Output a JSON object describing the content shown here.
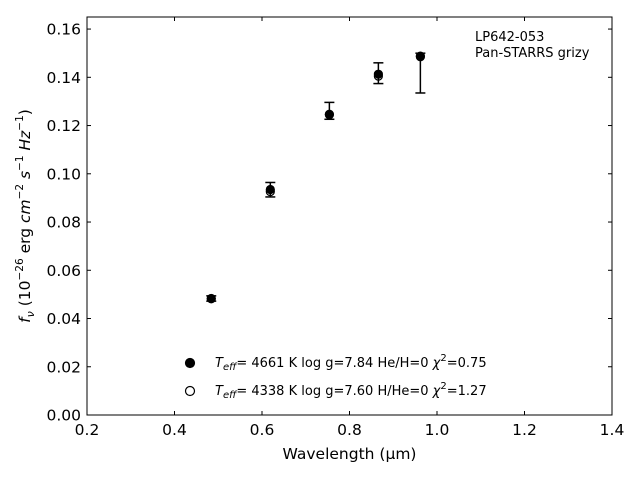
{
  "chart_data": {
    "type": "scatter",
    "xlabel": "Wavelength (μm)",
    "ylabel": "f_ν (10^-26 erg cm^-2 s^-1 Hz^-1)",
    "xlim": [
      0.2,
      1.4
    ],
    "ylim": [
      0.0,
      0.165
    ],
    "x_ticks": [
      0.2,
      0.4,
      0.6,
      0.8,
      1.0,
      1.2,
      1.4
    ],
    "y_ticks": [
      0.0,
      0.02,
      0.04,
      0.06,
      0.08,
      0.1,
      0.12,
      0.14,
      0.16
    ],
    "x_tick_labels": [
      "0.2",
      "0.4",
      "0.6",
      "0.8",
      "1.0",
      "1.2",
      "1.4"
    ],
    "y_tick_labels": [
      "0.00",
      "0.02",
      "0.04",
      "0.06",
      "0.08",
      "0.10",
      "0.12",
      "0.14",
      "0.16"
    ],
    "grid": false,
    "legend_position": "bottom-center",
    "annotation": [
      "LP642-053",
      "Pan-STARRS grizy"
    ],
    "observed": {
      "x": [
        0.484,
        0.619,
        0.754,
        0.866,
        0.962
      ],
      "y": [
        0.0483,
        0.0934,
        0.1258,
        0.1414,
        0.1495
      ],
      "err_low": [
        0.0011,
        0.003,
        0.0032,
        0.004,
        0.016
      ],
      "err_high": [
        0.0011,
        0.003,
        0.0038,
        0.0046,
        0.0005
      ]
    },
    "series": [
      {
        "marker": "filled-circle",
        "legend_label": {
          "teff": "4661 K",
          "logg": "log g=7.84",
          "comp": "He/H=0",
          "chi2": "=0.75"
        },
        "x": [
          0.484,
          0.619,
          0.754,
          0.866,
          0.962
        ],
        "y": [
          0.0483,
          0.0935,
          0.1245,
          0.1413,
          0.1485
        ]
      },
      {
        "marker": "open-circle",
        "legend_label": {
          "teff": "4338 K",
          "logg": "log g=7.60",
          "comp": "H/He=0",
          "chi2": "=1.27"
        },
        "x": [
          0.484,
          0.619,
          0.754,
          0.866,
          0.962
        ],
        "y": [
          0.0482,
          0.0926,
          0.1247,
          0.1405,
          0.1488
        ]
      }
    ]
  }
}
